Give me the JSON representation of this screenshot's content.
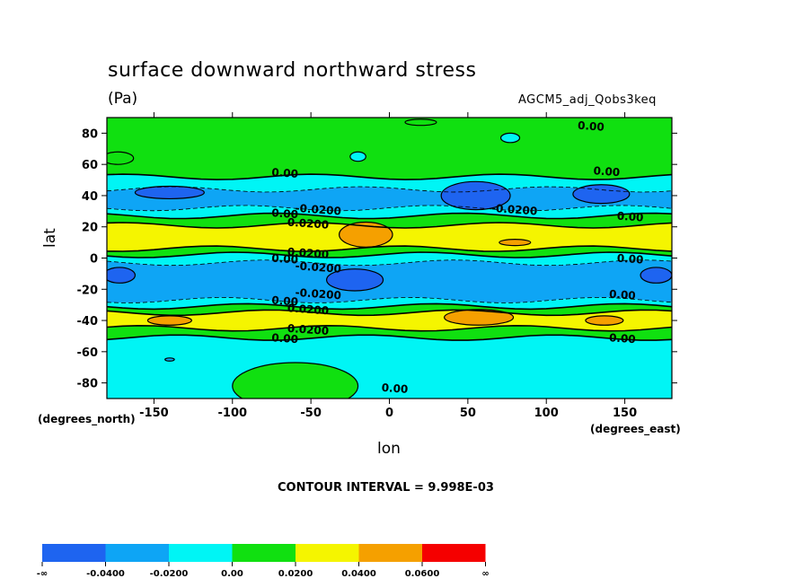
{
  "title": "surface downward northward stress",
  "units": "(Pa)",
  "dataset": "AGCM5_adj_Qobs3keq",
  "xlabel": "lon",
  "ylabel": "lat",
  "x_units": "(degrees_east)",
  "y_units": "(degrees_north)",
  "contour_interval": "CONTOUR INTERVAL = 9.998E-03",
  "chart_data": {
    "type": "heatmap",
    "xlim": [
      -180,
      180
    ],
    "ylim": [
      -90,
      90
    ],
    "xticks": [
      -150,
      -100,
      -50,
      0,
      50,
      100,
      150
    ],
    "xtick_labels": [
      "-150",
      "-100",
      "-50",
      "0",
      "50",
      "100",
      "150"
    ],
    "yticks": [
      -80,
      -60,
      -40,
      -20,
      0,
      20,
      40,
      60,
      80
    ],
    "ytick_labels": [
      "-80",
      "-60",
      "-40",
      "-20",
      "0",
      "20",
      "40",
      "60",
      "80"
    ],
    "colorbar": {
      "colors": [
        "#1e64f0",
        "#0ea5f5",
        "#00f5f5",
        "#10e010",
        "#f5f500",
        "#f5a000",
        "#f50000"
      ],
      "labels": [
        "-∞",
        "-0.0400",
        "-0.0200",
        "0.00",
        "0.0200",
        "0.0400",
        "0.0600",
        "∞"
      ]
    },
    "bands": [
      {
        "lat0": 90,
        "lat1": 52,
        "level": 3
      },
      {
        "lat0": 52,
        "lat1": 44,
        "level": 2
      },
      {
        "lat0": 44,
        "lat1": 32,
        "level": 1
      },
      {
        "lat0": 32,
        "lat1": 27,
        "level": 2
      },
      {
        "lat0": 27,
        "lat1": 21,
        "level": 3
      },
      {
        "lat0": 21,
        "lat1": 6,
        "level": 4
      },
      {
        "lat0": 6,
        "lat1": 2,
        "level": 3
      },
      {
        "lat0": 2,
        "lat1": -3,
        "level": 2
      },
      {
        "lat0": -3,
        "lat1": -27,
        "level": 1
      },
      {
        "lat0": -27,
        "lat1": -31,
        "level": 2
      },
      {
        "lat0": -31,
        "lat1": -35,
        "level": 3
      },
      {
        "lat0": -35,
        "lat1": -45,
        "level": 4
      },
      {
        "lat0": -45,
        "lat1": -51,
        "level": 3
      },
      {
        "lat0": -51,
        "lat1": -90,
        "level": 2
      }
    ],
    "cells": [
      {
        "lon": 20,
        "lat": 87,
        "rlon": 10,
        "rlat": 2,
        "level": 3
      },
      {
        "lon": 77,
        "lat": 77,
        "rlon": 6,
        "rlat": 3,
        "level": 2
      },
      {
        "lon": -20,
        "lat": 65,
        "rlon": 5,
        "rlat": 3,
        "level": 2
      },
      {
        "lon": -173,
        "lat": 64,
        "rlon": 10,
        "rlat": 4,
        "level": 3
      },
      {
        "lon": -140,
        "lat": 42,
        "rlon": 22,
        "rlat": 4,
        "level": 0
      },
      {
        "lon": 55,
        "lat": 40,
        "rlon": 22,
        "rlat": 9,
        "level": 0
      },
      {
        "lon": 135,
        "lat": 41,
        "rlon": 18,
        "rlat": 6,
        "level": 0
      },
      {
        "lon": -15,
        "lat": 15,
        "rlon": 17,
        "rlat": 8,
        "level": 5
      },
      {
        "lon": 80,
        "lat": 10,
        "rlon": 10,
        "rlat": 2,
        "level": 5
      },
      {
        "lon": -172,
        "lat": -11,
        "rlon": 10,
        "rlat": 5,
        "level": 0
      },
      {
        "lon": -22,
        "lat": -14,
        "rlon": 18,
        "rlat": 7,
        "level": 0
      },
      {
        "lon": 170,
        "lat": -11,
        "rlon": 10,
        "rlat": 5,
        "level": 0
      },
      {
        "lon": -140,
        "lat": -40,
        "rlon": 14,
        "rlat": 3,
        "level": 5
      },
      {
        "lon": 57,
        "lat": -38,
        "rlon": 22,
        "rlat": 5,
        "level": 5
      },
      {
        "lon": 137,
        "lat": -40,
        "rlon": 12,
        "rlat": 3,
        "level": 5
      },
      {
        "lon": -140,
        "lat": -65,
        "rlon": 3,
        "rlat": 1,
        "level": 1
      },
      {
        "lon": -60,
        "lat": -82,
        "rlon": 40,
        "rlat": 15,
        "level": 3
      }
    ],
    "contour_labels": [
      {
        "lon": -75,
        "lat": 55,
        "text": "0.00"
      },
      {
        "lon": -60,
        "lat": 32,
        "text": "-0.0200"
      },
      {
        "lon": -75,
        "lat": 29,
        "text": "0.00"
      },
      {
        "lon": -65,
        "lat": 23,
        "text": "0.0200"
      },
      {
        "lon": -65,
        "lat": 4,
        "text": "0.0200"
      },
      {
        "lon": -75,
        "lat": 0,
        "text": "0.00"
      },
      {
        "lon": -60,
        "lat": -5,
        "text": "-0.0200"
      },
      {
        "lon": -60,
        "lat": -22,
        "text": "-0.0200"
      },
      {
        "lon": -75,
        "lat": -27,
        "text": "0.00"
      },
      {
        "lon": -65,
        "lat": -32,
        "text": "0.0200"
      },
      {
        "lon": -65,
        "lat": -45,
        "text": "0.0200"
      },
      {
        "lon": -75,
        "lat": -51,
        "text": "0.00"
      },
      {
        "lon": 65,
        "lat": 32,
        "text": "-0.0200"
      },
      {
        "lon": 130,
        "lat": 56,
        "text": "0.00"
      },
      {
        "lon": 145,
        "lat": 27,
        "text": "0.00"
      },
      {
        "lon": 145,
        "lat": 0,
        "text": "0.00"
      },
      {
        "lon": 140,
        "lat": -23,
        "text": "0.00"
      },
      {
        "lon": 140,
        "lat": -51,
        "text": "0.00"
      },
      {
        "lon": 120,
        "lat": 85,
        "text": "0.00"
      },
      {
        "lon": -5,
        "lat": -83,
        "text": "0.00"
      }
    ]
  }
}
